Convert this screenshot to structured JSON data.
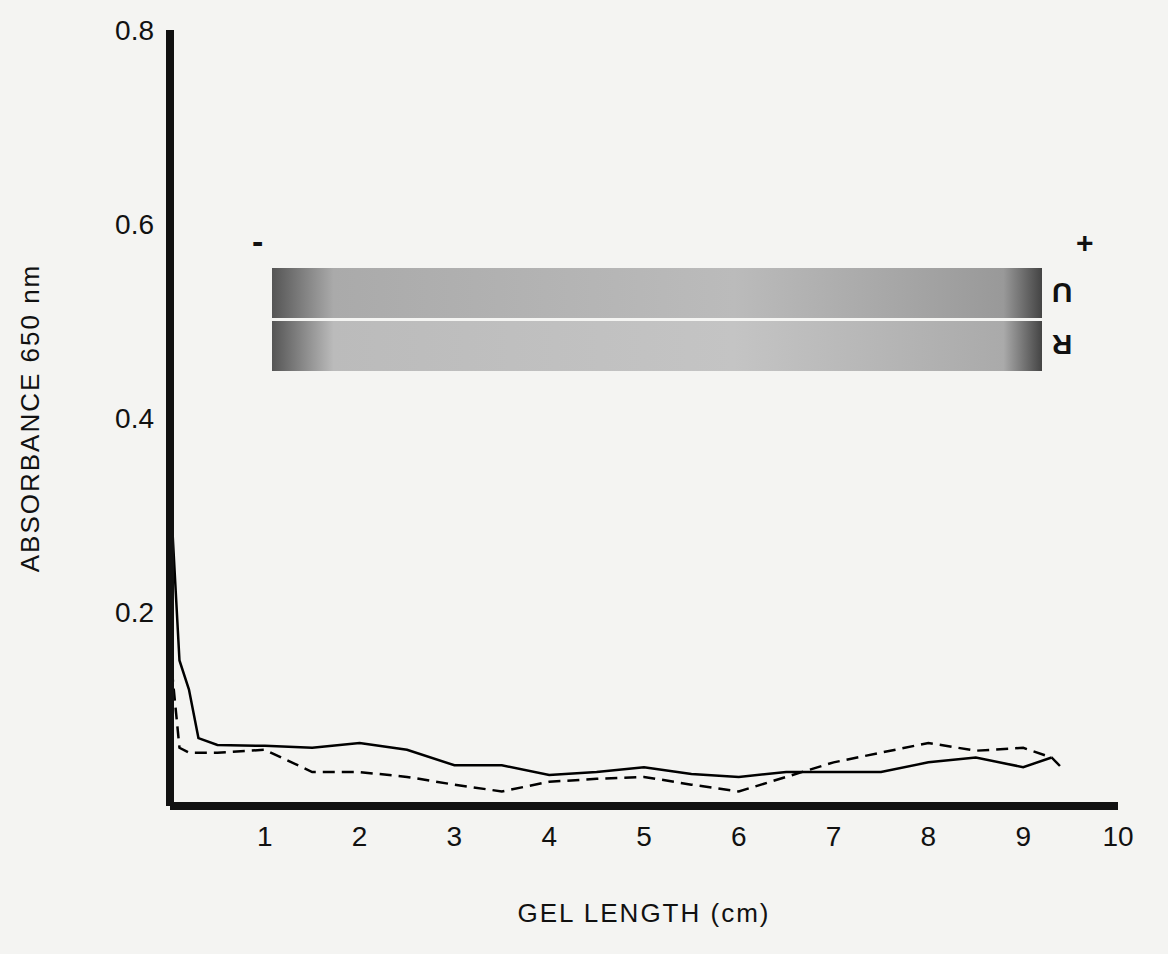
{
  "chart_data": {
    "type": "line",
    "x_label": "GEL LENGTH (cm)",
    "y_label": "ABSORBANCE 650 nm",
    "x": [
      0,
      0.1,
      0.2,
      0.3,
      0.5,
      1,
      1.5,
      2,
      2.5,
      3,
      3.5,
      4,
      4.5,
      5,
      5.5,
      6,
      6.5,
      7,
      7.5,
      8,
      8.5,
      9,
      9.3,
      9.4
    ],
    "series": [
      {
        "color": "#000000",
        "line_style": "solid",
        "values": [
          0.33,
          0.15,
          0.12,
          0.07,
          0.063,
          0.062,
          0.06,
          0.065,
          0.058,
          0.042,
          0.042,
          0.032,
          0.035,
          0.04,
          0.033,
          0.03,
          0.035,
          0.035,
          0.035,
          0.045,
          0.05,
          0.04,
          0.05,
          null
        ]
      },
      {
        "color": "#000000",
        "line_style": "dashed",
        "values": [
          0.16,
          0.06,
          0.055,
          0.055,
          0.055,
          0.058,
          0.035,
          0.035,
          0.03,
          0.022,
          0.015,
          0.025,
          0.028,
          0.03,
          0.022,
          0.015,
          0.03,
          0.045,
          0.055,
          0.065,
          0.057,
          0.06,
          0.05,
          0.04
        ]
      }
    ],
    "xlim": [
      0,
      10
    ],
    "xticks": [
      1,
      2,
      3,
      4,
      5,
      6,
      7,
      8,
      9,
      10
    ],
    "ylim": [
      0,
      0.8
    ],
    "yticks": [
      0.2,
      0.4,
      0.6,
      0.8
    ],
    "grid": false,
    "annotations": [
      "-",
      "+",
      "U",
      "R"
    ]
  }
}
